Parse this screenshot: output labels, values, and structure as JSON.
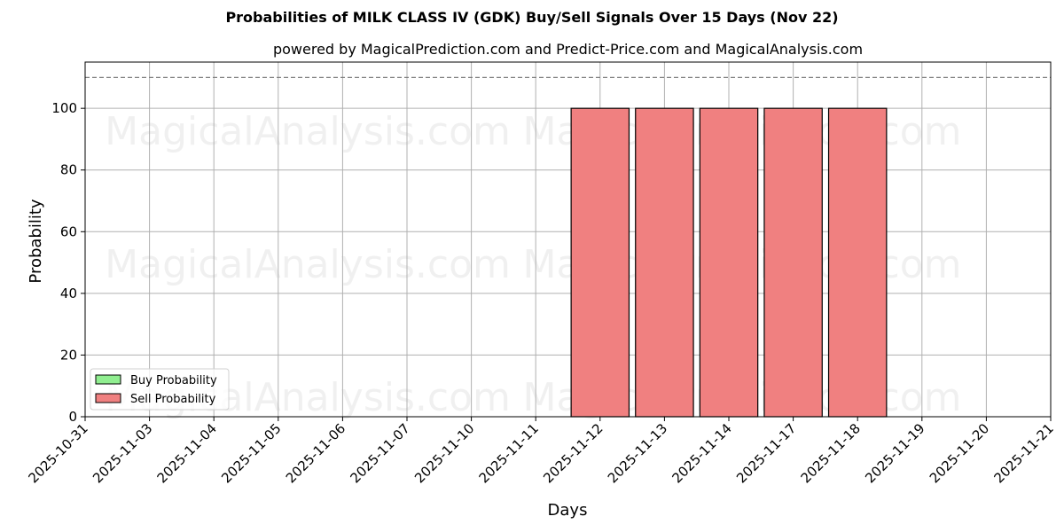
{
  "title": "Probabilities of MILK CLASS IV (GDK) Buy/Sell Signals Over 15 Days (Nov 22)",
  "subtitle": "powered by MagicalPrediction.com and Predict-Price.com and MagicalAnalysis.com",
  "watermarks": [
    "MagicalAnalysis.com",
    "MagicalPrediction.com"
  ],
  "colors": {
    "buy": "#90ee90",
    "sell": "#f08080",
    "grid": "#b0b0b0",
    "dashed": "#808080"
  },
  "chart_data": {
    "type": "bar",
    "title": "Probabilities of MILK CLASS IV (GDK) Buy/Sell Signals Over 15 Days (Nov 22)",
    "subtitle": "powered by MagicalPrediction.com and Predict-Price.com and MagicalAnalysis.com",
    "xlabel": "Days",
    "ylabel": "Probability",
    "ylim": [
      0,
      115
    ],
    "yticks": [
      0,
      20,
      40,
      60,
      80,
      100
    ],
    "categories": [
      "2025-10-31",
      "2025-11-03",
      "2025-11-04",
      "2025-11-05",
      "2025-11-06",
      "2025-11-07",
      "2025-11-10",
      "2025-11-11",
      "2025-11-12",
      "2025-11-13",
      "2025-11-14",
      "2025-11-17",
      "2025-11-18",
      "2025-11-19",
      "2025-11-20",
      "2025-11-21"
    ],
    "series": [
      {
        "name": "Buy Probability",
        "color": "#90ee90",
        "values": [
          0,
          0,
          0,
          0,
          0,
          0,
          0,
          0,
          0,
          0,
          0,
          0,
          0,
          0,
          0,
          0
        ]
      },
      {
        "name": "Sell Probability",
        "color": "#f08080",
        "values": [
          0,
          0,
          0,
          0,
          0,
          0,
          0,
          0,
          100,
          100,
          100,
          100,
          100,
          0,
          0,
          0
        ]
      }
    ],
    "reference_line": {
      "y": 110,
      "style": "dashed"
    },
    "grid": true,
    "legend_position": "lower left"
  }
}
